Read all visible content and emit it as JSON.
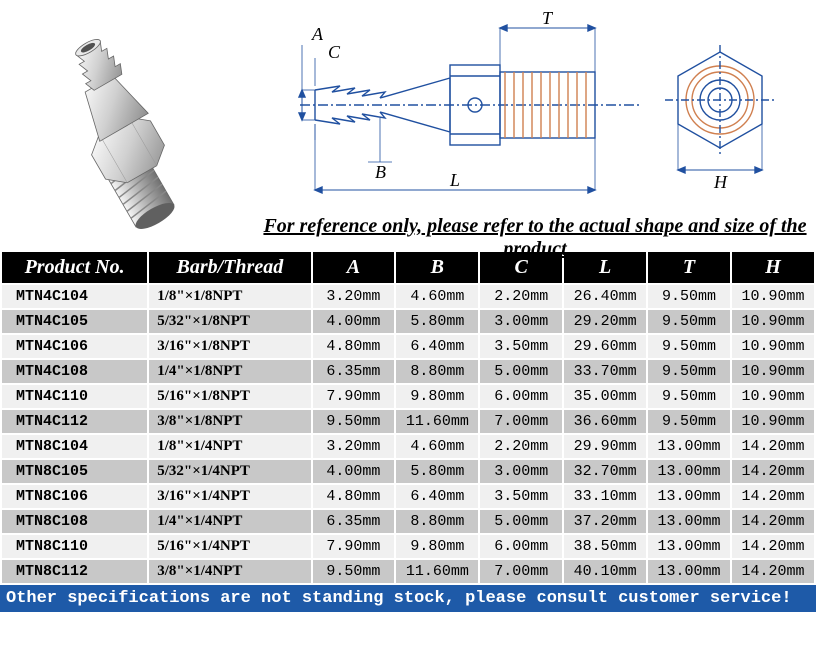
{
  "reference_note": "For reference only, please refer to the actual shape and size of the product",
  "diagram_labels": {
    "A": "A",
    "B": "B",
    "C": "C",
    "L": "L",
    "T": "T",
    "H": "H"
  },
  "table": {
    "columns": [
      "Product No.",
      "Barb/Thread",
      "A",
      "B",
      "C",
      "L",
      "T",
      "H"
    ],
    "rows": [
      [
        "MTN4C104",
        "1/8\"×1/8NPT",
        "3.20mm",
        "4.60mm",
        "2.20mm",
        "26.40mm",
        "9.50mm",
        "10.90mm"
      ],
      [
        "MTN4C105",
        "5/32\"×1/8NPT",
        "4.00mm",
        "5.80mm",
        "3.00mm",
        "29.20mm",
        "9.50mm",
        "10.90mm"
      ],
      [
        "MTN4C106",
        "3/16\"×1/8NPT",
        "4.80mm",
        "6.40mm",
        "3.50mm",
        "29.60mm",
        "9.50mm",
        "10.90mm"
      ],
      [
        "MTN4C108",
        "1/4\"×1/8NPT",
        "6.35mm",
        "8.80mm",
        "5.00mm",
        "33.70mm",
        "9.50mm",
        "10.90mm"
      ],
      [
        "MTN4C110",
        "5/16\"×1/8NPT",
        "7.90mm",
        "9.80mm",
        "6.00mm",
        "35.00mm",
        "9.50mm",
        "10.90mm"
      ],
      [
        "MTN4C112",
        "3/8\"×1/8NPT",
        "9.50mm",
        "11.60mm",
        "7.00mm",
        "36.60mm",
        "9.50mm",
        "10.90mm"
      ],
      [
        "MTN8C104",
        "1/8\"×1/4NPT",
        "3.20mm",
        "4.60mm",
        "2.20mm",
        "29.90mm",
        "13.00mm",
        "14.20mm"
      ],
      [
        "MTN8C105",
        "5/32\"×1/4NPT",
        "4.00mm",
        "5.80mm",
        "3.00mm",
        "32.70mm",
        "13.00mm",
        "14.20mm"
      ],
      [
        "MTN8C106",
        "3/16\"×1/4NPT",
        "4.80mm",
        "6.40mm",
        "3.50mm",
        "33.10mm",
        "13.00mm",
        "14.20mm"
      ],
      [
        "MTN8C108",
        "1/4\"×1/4NPT",
        "6.35mm",
        "8.80mm",
        "5.00mm",
        "37.20mm",
        "13.00mm",
        "14.20mm"
      ],
      [
        "MTN8C110",
        "5/16\"×1/4NPT",
        "7.90mm",
        "9.80mm",
        "6.00mm",
        "38.50mm",
        "13.00mm",
        "14.20mm"
      ],
      [
        "MTN8C112",
        "3/8\"×1/4NPT",
        "9.50mm",
        "11.60mm",
        "7.00mm",
        "40.10mm",
        "13.00mm",
        "14.20mm"
      ]
    ]
  },
  "footer_note": "Other specifications are not standing stock, please consult customer service!",
  "colors": {
    "header_bg": "#000000",
    "header_fg": "#ffffff",
    "row_light": "#f0f0f0",
    "row_dark": "#c8c8c8",
    "footer_bg": "#1e5aa8",
    "footer_fg": "#ffffff",
    "diagram_line": "#2050a0",
    "diagram_thread": "#d08050"
  }
}
